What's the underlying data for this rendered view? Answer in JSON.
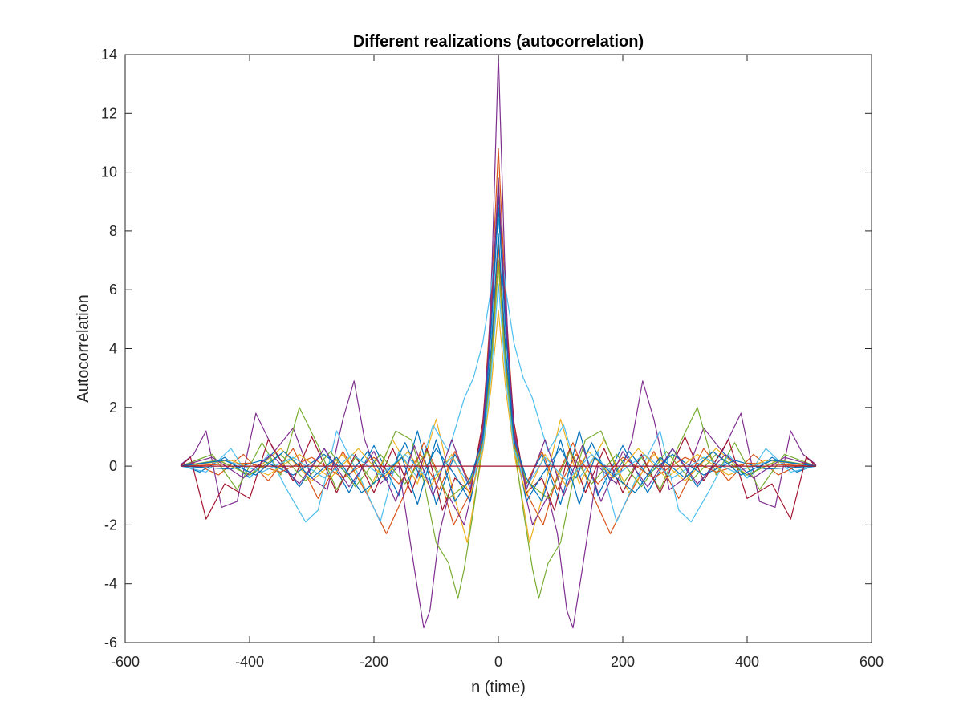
{
  "chart_data": {
    "type": "line",
    "title": "Different realizations (autocorrelation)",
    "xlabel": "n (time)",
    "ylabel": "Autocorrelation",
    "xlim": [
      -600,
      600
    ],
    "ylim": [
      -6,
      14
    ],
    "xticks": [
      -600,
      -400,
      -200,
      0,
      200,
      400,
      600
    ],
    "yticks": [
      -6,
      -4,
      -2,
      0,
      2,
      4,
      6,
      8,
      10,
      12,
      14
    ],
    "grid": false,
    "legend": "none",
    "symmetric_about_zero": true,
    "series": [
      {
        "color": "#0072BD",
        "points": [
          [
            0,
            9.2
          ],
          [
            12,
            4.8
          ],
          [
            25,
            1.1
          ],
          [
            45,
            -0.6
          ],
          [
            70,
            0.4
          ],
          [
            100,
            -1.3
          ],
          [
            130,
            1.2
          ],
          [
            160,
            -1.0
          ],
          [
            200,
            0.7
          ],
          [
            240,
            -0.9
          ],
          [
            280,
            0.6
          ],
          [
            320,
            -0.7
          ],
          [
            360,
            0.5
          ],
          [
            400,
            -0.4
          ],
          [
            440,
            0.3
          ],
          [
            480,
            -0.2
          ],
          [
            511,
            0.05
          ]
        ]
      },
      {
        "color": "#D95319",
        "points": [
          [
            0,
            10.8
          ],
          [
            12,
            5.5
          ],
          [
            25,
            1.3
          ],
          [
            45,
            -0.9
          ],
          [
            72,
            -2.0
          ],
          [
            95,
            -0.3
          ],
          [
            120,
            0.8
          ],
          [
            150,
            -0.9
          ],
          [
            180,
            -2.3
          ],
          [
            210,
            -1.0
          ],
          [
            250,
            0.5
          ],
          [
            290,
            -1.1
          ],
          [
            330,
            0.6
          ],
          [
            370,
            -0.5
          ],
          [
            410,
            0.4
          ],
          [
            450,
            -0.3
          ],
          [
            490,
            0.1
          ],
          [
            511,
            0.0
          ]
        ]
      },
      {
        "color": "#EDB120",
        "points": [
          [
            0,
            5.3
          ],
          [
            12,
            2.6
          ],
          [
            25,
            0.5
          ],
          [
            40,
            -1.3
          ],
          [
            50,
            -2.6
          ],
          [
            70,
            -1.1
          ],
          [
            100,
            1.6
          ],
          [
            130,
            -0.6
          ],
          [
            170,
            0.9
          ],
          [
            210,
            -0.9
          ],
          [
            250,
            0.4
          ],
          [
            300,
            -0.5
          ],
          [
            350,
            0.6
          ],
          [
            400,
            -0.3
          ],
          [
            450,
            0.2
          ],
          [
            511,
            0.0
          ]
        ]
      },
      {
        "color": "#7E2F8E",
        "points": [
          [
            0,
            14.0
          ],
          [
            10,
            7.0
          ],
          [
            20,
            1.8
          ],
          [
            35,
            -0.2
          ],
          [
            55,
            -2.0
          ],
          [
            80,
            -1.0
          ],
          [
            95,
            -2.3
          ],
          [
            110,
            -4.9
          ],
          [
            120,
            -5.5
          ],
          [
            135,
            -3.5
          ],
          [
            160,
            0.0
          ],
          [
            190,
            -0.6
          ],
          [
            215,
            0.9
          ],
          [
            232,
            2.9
          ],
          [
            250,
            1.6
          ],
          [
            275,
            -0.8
          ],
          [
            300,
            -0.4
          ],
          [
            330,
            1.3
          ],
          [
            360,
            0.5
          ],
          [
            390,
            1.8
          ],
          [
            420,
            -1.2
          ],
          [
            445,
            -1.4
          ],
          [
            470,
            1.2
          ],
          [
            490,
            0.4
          ],
          [
            511,
            0.05
          ]
        ]
      },
      {
        "color": "#77AC30",
        "points": [
          [
            0,
            7.7
          ],
          [
            12,
            3.8
          ],
          [
            25,
            0.8
          ],
          [
            40,
            -1.5
          ],
          [
            55,
            -3.5
          ],
          [
            65,
            -4.5
          ],
          [
            80,
            -3.3
          ],
          [
            100,
            -2.6
          ],
          [
            120,
            -0.5
          ],
          [
            140,
            0.9
          ],
          [
            165,
            1.2
          ],
          [
            200,
            -0.6
          ],
          [
            230,
            0.3
          ],
          [
            260,
            -0.8
          ],
          [
            290,
            0.7
          ],
          [
            320,
            2.0
          ],
          [
            350,
            -0.3
          ],
          [
            380,
            0.8
          ],
          [
            420,
            -0.8
          ],
          [
            460,
            0.4
          ],
          [
            511,
            0.0
          ]
        ]
      },
      {
        "color": "#4DBEEE",
        "points": [
          [
            0,
            8.4
          ],
          [
            12,
            6.0
          ],
          [
            25,
            4.2
          ],
          [
            40,
            3.0
          ],
          [
            55,
            2.3
          ],
          [
            80,
            0.5
          ],
          [
            105,
            1.4
          ],
          [
            130,
            -0.4
          ],
          [
            160,
            0.5
          ],
          [
            190,
            -1.9
          ],
          [
            220,
            -0.5
          ],
          [
            260,
            1.2
          ],
          [
            290,
            -1.5
          ],
          [
            310,
            -1.9
          ],
          [
            340,
            -0.8
          ],
          [
            370,
            0.4
          ],
          [
            400,
            -0.4
          ],
          [
            430,
            0.6
          ],
          [
            470,
            -0.2
          ],
          [
            511,
            0.0
          ]
        ]
      },
      {
        "color": "#A2142F",
        "points": [
          [
            0,
            9.6
          ],
          [
            12,
            5.0
          ],
          [
            25,
            1.5
          ],
          [
            45,
            -0.9
          ],
          [
            70,
            -0.4
          ],
          [
            90,
            -1.5
          ],
          [
            115,
            0.6
          ],
          [
            140,
            -0.9
          ],
          [
            170,
            0.6
          ],
          [
            200,
            -0.9
          ],
          [
            230,
            0.4
          ],
          [
            260,
            -0.9
          ],
          [
            300,
            1.0
          ],
          [
            330,
            -0.5
          ],
          [
            370,
            0.9
          ],
          [
            400,
            -1.1
          ],
          [
            440,
            -0.6
          ],
          [
            470,
            -1.8
          ],
          [
            495,
            0.3
          ],
          [
            511,
            0.0
          ]
        ]
      },
      {
        "color": "#0072BD",
        "points": [
          [
            0,
            8.8
          ],
          [
            12,
            4.5
          ],
          [
            25,
            0.9
          ],
          [
            45,
            -1.2
          ],
          [
            70,
            -0.3
          ],
          [
            100,
            0.6
          ],
          [
            125,
            -0.4
          ],
          [
            150,
            0.8
          ],
          [
            180,
            -0.5
          ],
          [
            210,
            0.5
          ],
          [
            240,
            -0.3
          ],
          [
            280,
            0.4
          ],
          [
            330,
            -0.3
          ],
          [
            380,
            0.2
          ],
          [
            430,
            -0.1
          ],
          [
            511,
            0.0
          ]
        ]
      },
      {
        "color": "#D95319",
        "points": [
          [
            0,
            7.5
          ],
          [
            12,
            3.6
          ],
          [
            25,
            0.8
          ],
          [
            45,
            -0.6
          ],
          [
            70,
            0.5
          ],
          [
            95,
            -0.8
          ],
          [
            125,
            0.4
          ],
          [
            160,
            -0.6
          ],
          [
            200,
            0.3
          ],
          [
            250,
            -0.4
          ],
          [
            300,
            0.3
          ],
          [
            350,
            -0.2
          ],
          [
            400,
            0.1
          ],
          [
            511,
            0.0
          ]
        ]
      },
      {
        "color": "#EDB120",
        "points": [
          [
            0,
            6.8
          ],
          [
            12,
            3.2
          ],
          [
            25,
            0.6
          ],
          [
            45,
            -1.0
          ],
          [
            75,
            0.4
          ],
          [
            110,
            -0.7
          ],
          [
            145,
            0.5
          ],
          [
            185,
            -0.4
          ],
          [
            225,
            0.6
          ],
          [
            270,
            -0.4
          ],
          [
            320,
            0.4
          ],
          [
            370,
            -0.3
          ],
          [
            430,
            0.2
          ],
          [
            511,
            0.0
          ]
        ]
      },
      {
        "color": "#77AC30",
        "points": [
          [
            0,
            7.0
          ],
          [
            12,
            3.4
          ],
          [
            25,
            0.7
          ],
          [
            45,
            -0.5
          ],
          [
            80,
            -1.1
          ],
          [
            115,
            0.5
          ],
          [
            150,
            -0.6
          ],
          [
            190,
            0.4
          ],
          [
            230,
            -0.7
          ],
          [
            270,
            0.5
          ],
          [
            310,
            -0.5
          ],
          [
            350,
            0.4
          ],
          [
            400,
            -0.3
          ],
          [
            450,
            0.2
          ],
          [
            511,
            0.0
          ]
        ]
      },
      {
        "color": "#4DBEEE",
        "points": [
          [
            0,
            6.2
          ],
          [
            12,
            3.0
          ],
          [
            25,
            0.6
          ],
          [
            45,
            -0.7
          ],
          [
            75,
            0.3
          ],
          [
            110,
            -0.5
          ],
          [
            150,
            0.4
          ],
          [
            190,
            -0.3
          ],
          [
            235,
            0.4
          ],
          [
            280,
            -0.4
          ],
          [
            330,
            0.3
          ],
          [
            380,
            -0.2
          ],
          [
            440,
            0.2
          ],
          [
            511,
            0.0
          ]
        ]
      },
      {
        "color": "#7E2F8E",
        "points": [
          [
            0,
            9.8
          ],
          [
            12,
            5.0
          ],
          [
            25,
            1.2
          ],
          [
            45,
            -0.8
          ],
          [
            75,
            0.9
          ],
          [
            105,
            -1.0
          ],
          [
            135,
            0.7
          ],
          [
            165,
            -1.2
          ],
          [
            200,
            0.5
          ],
          [
            240,
            -0.7
          ],
          [
            280,
            0.6
          ],
          [
            320,
            -0.6
          ],
          [
            365,
            0.4
          ],
          [
            410,
            -0.4
          ],
          [
            460,
            0.3
          ],
          [
            511,
            0.0
          ]
        ]
      },
      {
        "color": "#0072BD",
        "points": [
          [
            0,
            7.9
          ],
          [
            12,
            3.9
          ],
          [
            25,
            0.9
          ],
          [
            45,
            -0.4
          ],
          [
            70,
            -1.2
          ],
          [
            100,
            0.9
          ],
          [
            130,
            -1.3
          ],
          [
            155,
            0.3
          ],
          [
            190,
            -0.4
          ],
          [
            220,
            -0.9
          ],
          [
            260,
            0.3
          ],
          [
            300,
            -0.4
          ],
          [
            345,
            0.5
          ],
          [
            390,
            -0.3
          ],
          [
            440,
            0.2
          ],
          [
            511,
            0.0
          ]
        ]
      },
      {
        "color": "#A2142F",
        "points": [
          [
            0,
            0.0
          ],
          [
            511,
            0.0
          ]
        ]
      }
    ]
  }
}
